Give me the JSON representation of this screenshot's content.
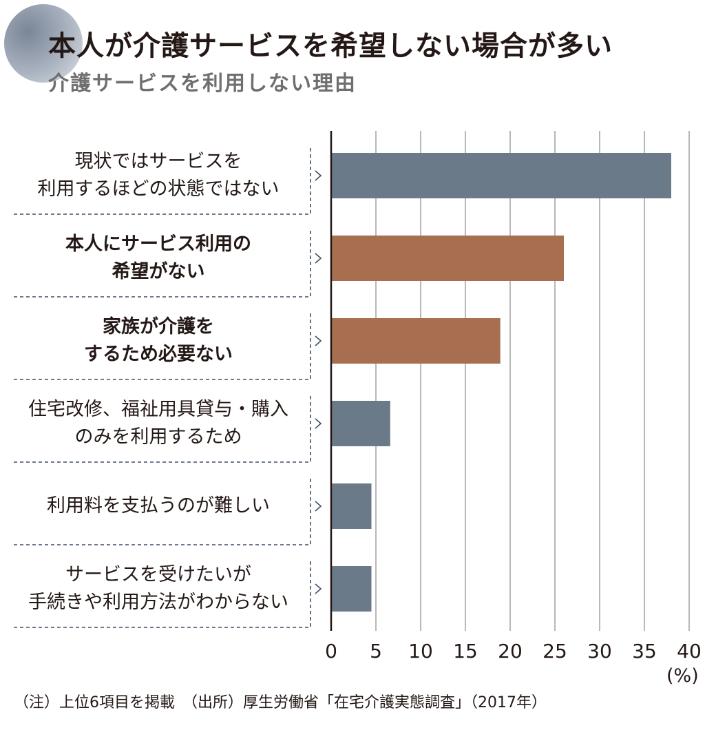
{
  "header": {
    "title": "本人が介護サービスを希望しない場合が多い",
    "subtitle": "介護サービスを利用しない理由"
  },
  "chart_data": {
    "type": "bar",
    "orientation": "horizontal",
    "categories": [
      "現状ではサービスを\n利用するほどの状態ではない",
      "本人にサービス利用の\n希望がない",
      "家族が介護を\nするため必要ない",
      "住宅改修、福祉用具貸与・購入\nのみを利用するため",
      "利用料を支払うのが難しい",
      "サービスを受けたいが\n手続きや利用方法がわからない"
    ],
    "values": [
      38.0,
      26.0,
      18.9,
      6.6,
      4.5,
      4.5
    ],
    "bar_colors": [
      "#6b7a89",
      "#a86e50",
      "#a86e50",
      "#6b7a89",
      "#6b7a89",
      "#6b7a89"
    ],
    "bold_categories": [
      false,
      true,
      true,
      false,
      false,
      false
    ],
    "xlim": [
      0,
      40
    ],
    "xticks": [
      "0",
      "5",
      "10",
      "15",
      "20",
      "25",
      "30",
      "35",
      "40"
    ],
    "unit": "(%)",
    "grid": true,
    "gridline_color": "#9a9a9a",
    "divider_color": "#3d4f66"
  },
  "footnote": "（注）上位6項目を掲載　（出所）厚生労働省「在宅介護実態調査」（2017年）"
}
